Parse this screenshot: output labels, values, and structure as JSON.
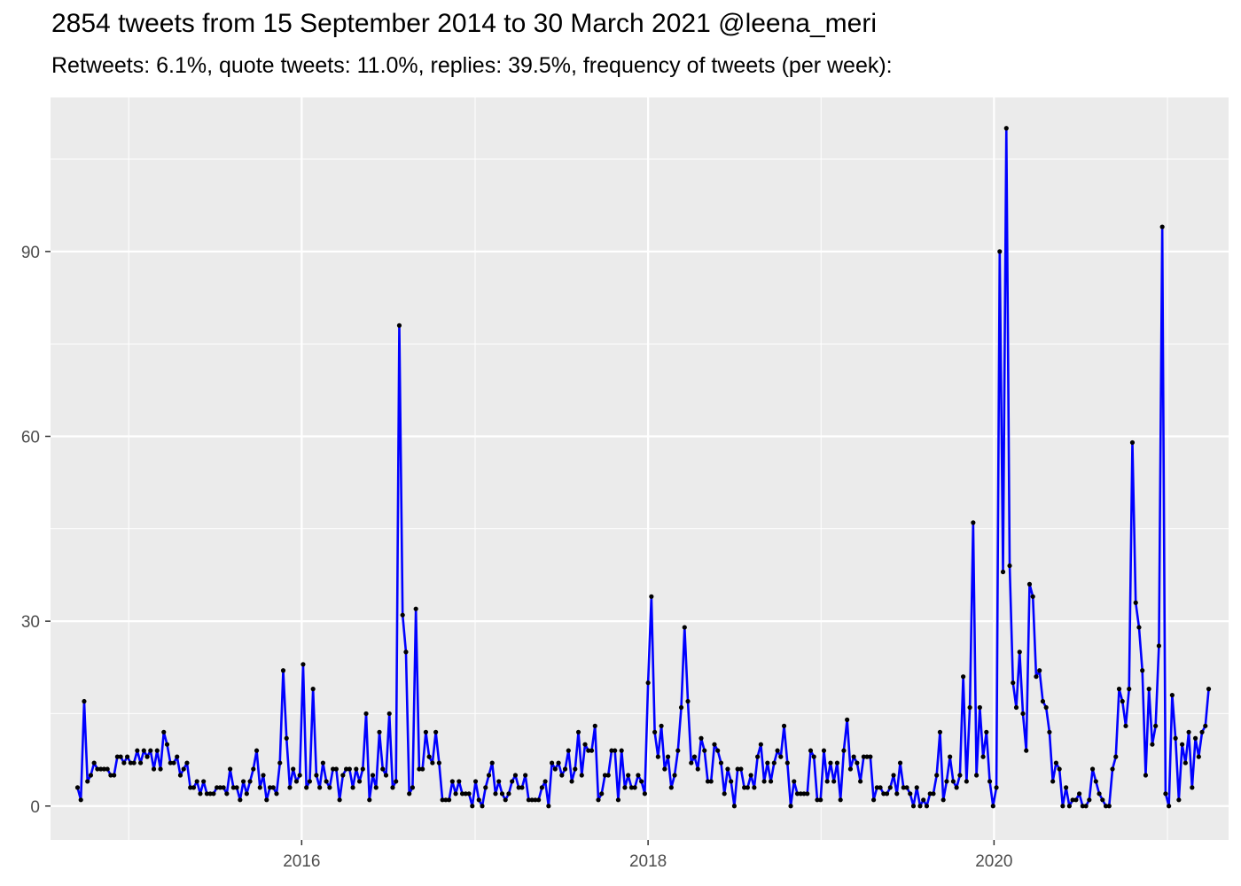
{
  "chart_data": {
    "type": "line",
    "title": "2854 tweets from 15 September 2014 to 30 March 2021 @leena_meri",
    "subtitle": "Retweets: 6.1%, quote tweets: 11.0%, replies: 39.5%, frequency of tweets (per week):",
    "xlabel": "",
    "ylabel": "",
    "x_ticks": [
      "2016",
      "2018",
      "2020"
    ],
    "y_ticks": [
      0,
      30,
      60,
      90
    ],
    "xlim": [
      "2014-07-20",
      "2021-05-10"
    ],
    "ylim": [
      -5.5,
      115
    ],
    "grid": true,
    "legend": "none",
    "line_color": "#0000ff",
    "point_color": "#000000",
    "panel_color": "#ebebeb",
    "series": [
      {
        "start_date": "2014-09-15",
        "interval_days": 7,
        "values": [
          3,
          1,
          17,
          4,
          5,
          7,
          6,
          6,
          6,
          6,
          5,
          5,
          8,
          8,
          7,
          8,
          7,
          7,
          9,
          7,
          9,
          8,
          9,
          6,
          9,
          6,
          12,
          10,
          7,
          7,
          8,
          5,
          6,
          7,
          3,
          3,
          4,
          2,
          4,
          2,
          2,
          2,
          3,
          3,
          3,
          2,
          6,
          3,
          3,
          1,
          4,
          2,
          4,
          6,
          9,
          3,
          5,
          1,
          3,
          3,
          2,
          7,
          22,
          11,
          3,
          6,
          4,
          5,
          23,
          3,
          4,
          19,
          5,
          3,
          7,
          4,
          3,
          6,
          6,
          1,
          5,
          6,
          6,
          3,
          6,
          4,
          6,
          15,
          1,
          5,
          3,
          12,
          6,
          5,
          15,
          3,
          4,
          78,
          31,
          25,
          2,
          3,
          32,
          6,
          6,
          12,
          8,
          7,
          12,
          7,
          1,
          1,
          1,
          4,
          2,
          4,
          2,
          2,
          2,
          0,
          4,
          1,
          0,
          3,
          5,
          7,
          2,
          4,
          2,
          1,
          2,
          4,
          5,
          3,
          3,
          5,
          1,
          1,
          1,
          1,
          3,
          4,
          0,
          7,
          6,
          7,
          5,
          6,
          9,
          4,
          6,
          12,
          5,
          10,
          9,
          9,
          13,
          1,
          2,
          5,
          5,
          9,
          9,
          1,
          9,
          3,
          5,
          3,
          3,
          5,
          4,
          2,
          20,
          34,
          12,
          8,
          13,
          6,
          8,
          3,
          5,
          9,
          16,
          29,
          17,
          7,
          8,
          6,
          11,
          9,
          4,
          4,
          10,
          9,
          7,
          2,
          6,
          4,
          0,
          6,
          6,
          3,
          3,
          5,
          3,
          8,
          10,
          4,
          7,
          4,
          7,
          9,
          8,
          13,
          7,
          0,
          4,
          2,
          2,
          2,
          2,
          9,
          8,
          1,
          1,
          9,
          4,
          7,
          4,
          7,
          1,
          9,
          14,
          6,
          8,
          7,
          4,
          8,
          8,
          8,
          1,
          3,
          3,
          2,
          2,
          3,
          5,
          2,
          7,
          3,
          3,
          2,
          0,
          3,
          0,
          1,
          0,
          2,
          2,
          5,
          12,
          1,
          4,
          8,
          4,
          3,
          5,
          21,
          4,
          16,
          46,
          5,
          16,
          8,
          12,
          4,
          0,
          3,
          90,
          38,
          110,
          39,
          20,
          16,
          25,
          15,
          9,
          36,
          34,
          21,
          22,
          17,
          16,
          12,
          4,
          7,
          6,
          0,
          3,
          0,
          1,
          1,
          2,
          0,
          0,
          1,
          6,
          4,
          2,
          1,
          0,
          0,
          6,
          8,
          19,
          17,
          13,
          19,
          59,
          33,
          29,
          22,
          5,
          19,
          10,
          13,
          26,
          94,
          2,
          0,
          18,
          11,
          1,
          10,
          7,
          12,
          3,
          11,
          8,
          12,
          13,
          19
        ]
      }
    ]
  }
}
